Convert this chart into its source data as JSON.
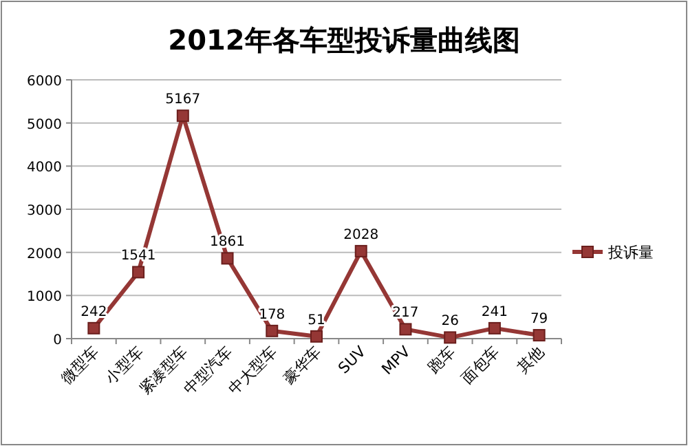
{
  "chart_data": {
    "type": "line",
    "title": "2012年各车型投诉量曲线图",
    "categories": [
      "微型车",
      "小型车",
      "紧凑型车",
      "中型汽车",
      "中大型车",
      "豪华车",
      "SUV",
      "MPV",
      "跑车",
      "面包车",
      "其他"
    ],
    "series": [
      {
        "name": "投诉量",
        "color": "#953735",
        "values": [
          242,
          1541,
          5167,
          1861,
          178,
          51,
          2028,
          217,
          26,
          241,
          79
        ]
      }
    ],
    "ylim": [
      0,
      6000
    ],
    "yticks": [
      0,
      1000,
      2000,
      3000,
      4000,
      5000,
      6000
    ],
    "grid": "y",
    "legend": "right",
    "marker": "square",
    "line_style": "solid",
    "data_labels": true
  }
}
